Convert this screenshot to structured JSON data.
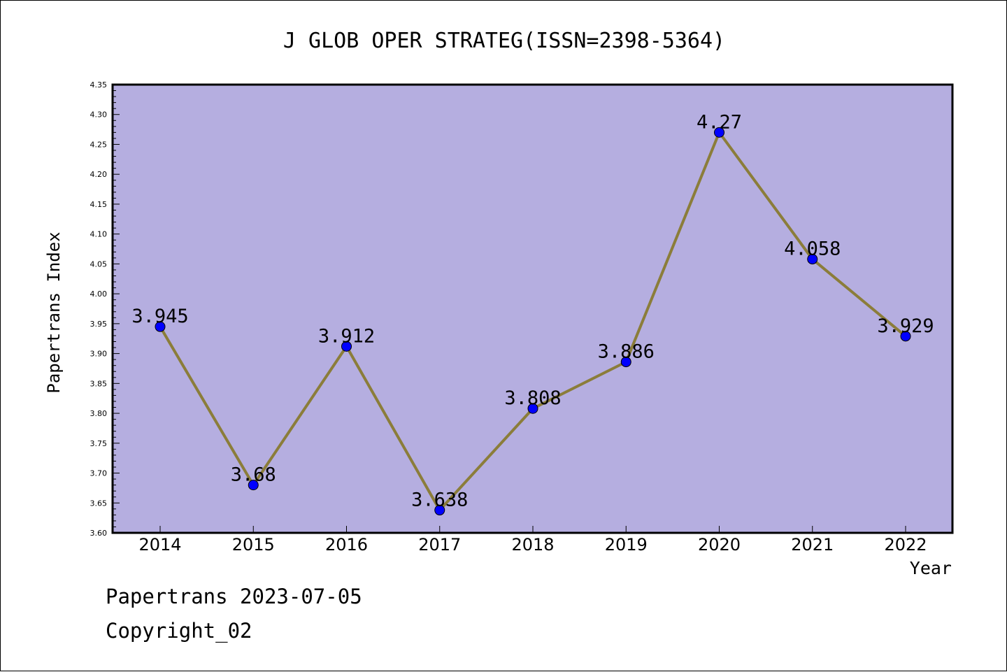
{
  "chart_data": {
    "type": "line",
    "title": "J GLOB OPER STRATEG(ISSN=2398-5364)",
    "xlabel": "Year",
    "ylabel": "Papertrans Index",
    "categories": [
      "2014",
      "2015",
      "2016",
      "2017",
      "2018",
      "2019",
      "2020",
      "2021",
      "2022"
    ],
    "values": [
      3.945,
      3.68,
      3.912,
      3.638,
      3.808,
      3.886,
      4.27,
      4.058,
      3.929
    ],
    "data_labels": [
      "3.945",
      "3.68",
      "3.912",
      "3.638",
      "3.808",
      "3.886",
      "4.27",
      "4.058",
      "3.929"
    ],
    "ylim": [
      3.6,
      4.35
    ],
    "yticks": [
      "3.60",
      "3.65",
      "3.70",
      "3.75",
      "3.80",
      "3.85",
      "3.90",
      "3.95",
      "4.00",
      "4.05",
      "4.10",
      "4.15",
      "4.20",
      "4.25",
      "4.30",
      "4.35"
    ],
    "grid": false,
    "colors": {
      "plot_background": "#b5aee0",
      "line": "#8b7d3a",
      "marker": "#0000ff"
    }
  },
  "footer": {
    "line1": "Papertrans 2023-07-05",
    "line2": "Copyright_02"
  }
}
